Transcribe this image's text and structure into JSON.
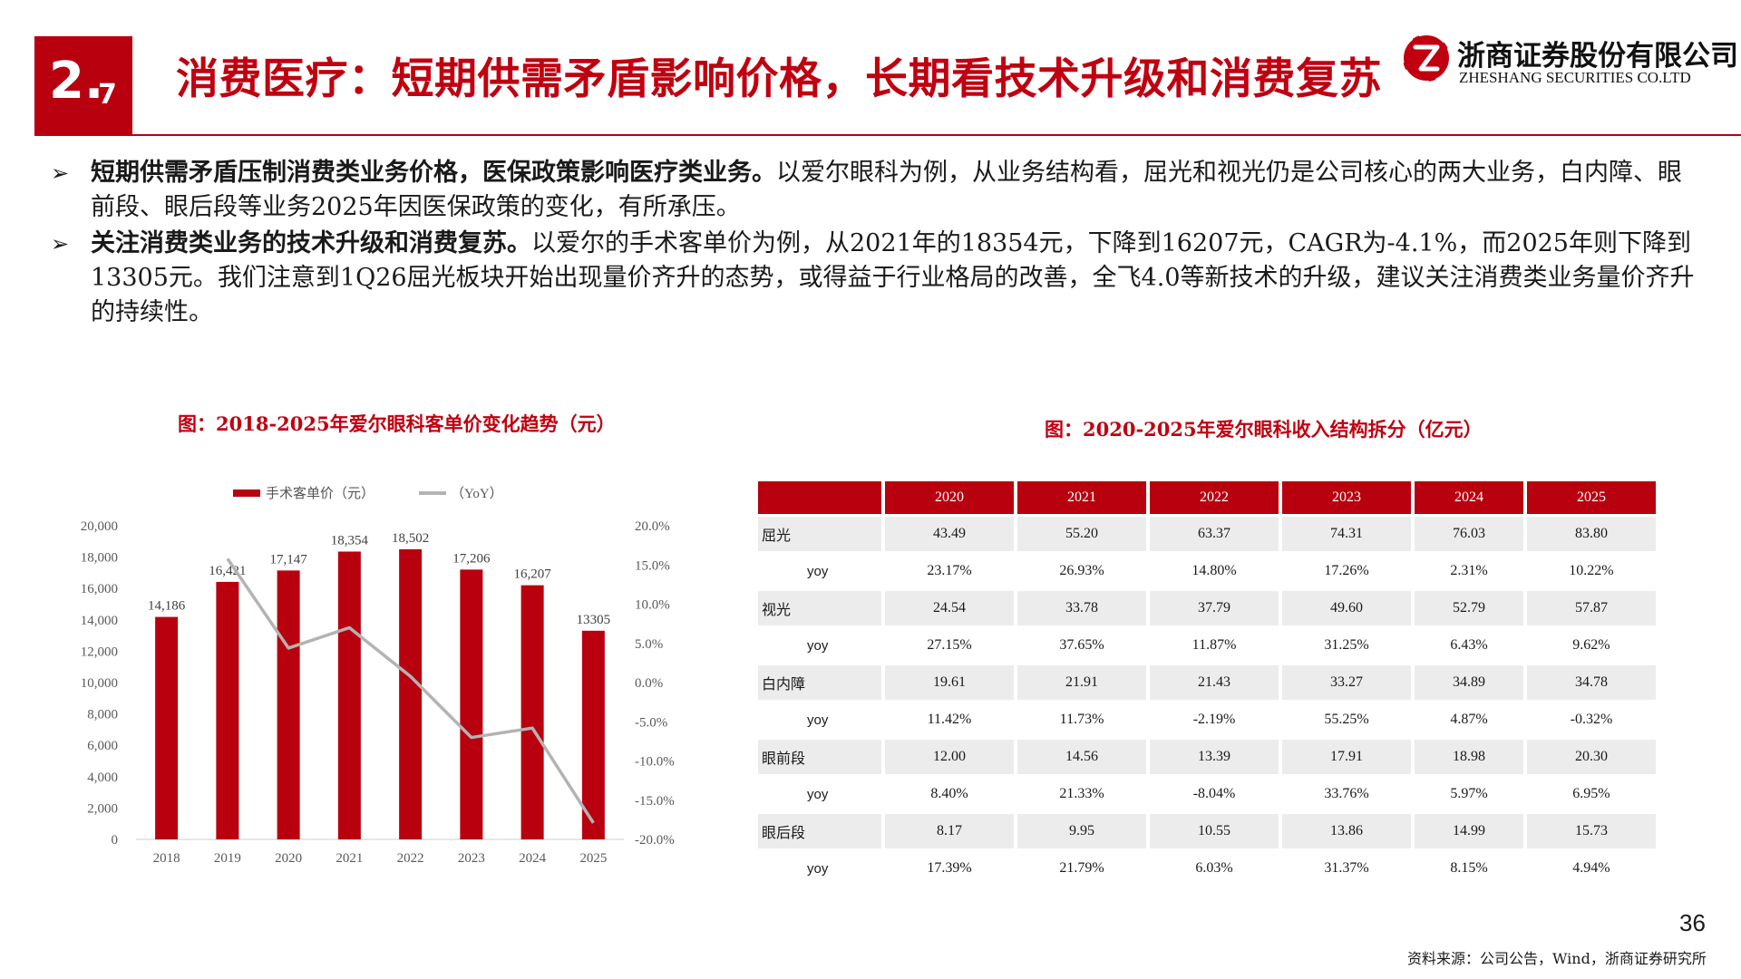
{
  "section": {
    "major": "2.",
    "minor": "7"
  },
  "title": "消费医疗：短期供需矛盾影响价格，长期看技术升级和消费复苏",
  "logo": {
    "cn": "浙商证券股份有限公司",
    "en": "ZHESHANG SECURITIES CO.LTD"
  },
  "bullets": [
    {
      "bold": "短期供需矛盾压制消费类业务价格，医保政策影响医疗类业务。",
      "text": "以爱尔眼科为例，从业务结构看，屈光和视光仍是公司核心的两大业务，白内障、眼前段、眼后段等业务2025年因医保政策的变化，有所承压。"
    },
    {
      "bold": "关注消费类业务的技术升级和消费复苏。",
      "text": "以爱尔的手术客单价为例，从2021年的18354元，下降到16207元，CAGR为-4.1%，而2025年则下降到13305元。我们注意到1Q26屈光板块开始出现量价齐升的态势，或得益于行业格局的改善，全飞4.0等新技术的升级，建议关注消费类业务量价齐升的持续性。"
    }
  ],
  "chart1_title": "图：2018-2025年爱尔眼科客单价变化趋势（元）",
  "table_title": "图：2020-2025年爱尔眼科收入结构拆分（亿元）",
  "chart_data": [
    {
      "type": "bar",
      "categories": [
        "2018",
        "2019",
        "2020",
        "2021",
        "2022",
        "2023",
        "2024",
        "2025"
      ],
      "series": [
        {
          "name": "手术客单价（元）",
          "type": "bar",
          "axis": "left",
          "color": "#b8000f",
          "values": [
            14186,
            16421,
            17147,
            18354,
            18502,
            17206,
            16207,
            13305
          ],
          "labels": [
            "14,186",
            "16,421",
            "17,147",
            "18,354",
            "18,502",
            "17,206",
            "16,207",
            "13305"
          ]
        },
        {
          "name": "（YoY）",
          "type": "line",
          "axis": "right",
          "color": "#b3b3b3",
          "values": [
            null,
            15.8,
            4.4,
            7.0,
            0.8,
            -7.0,
            -5.8,
            -17.9
          ]
        }
      ],
      "ylim_left": [
        0,
        20000
      ],
      "yticks_left": [
        "0",
        "2,000",
        "4,000",
        "6,000",
        "8,000",
        "10,000",
        "12,000",
        "14,000",
        "16,000",
        "18,000",
        "20,000"
      ],
      "ylim_right": [
        -20,
        20
      ],
      "yticks_right": [
        "-20.0%",
        "-15.0%",
        "-10.0%",
        "-5.0%",
        "0.0%",
        "5.0%",
        "10.0%",
        "15.0%",
        "20.0%"
      ],
      "legend": "top"
    },
    {
      "type": "table",
      "columns": [
        "",
        "2020",
        "2021",
        "2022",
        "2023",
        "2024",
        "2025"
      ],
      "rows": [
        {
          "label": "屈光",
          "kind": "main",
          "values": [
            "43.49",
            "55.20",
            "63.37",
            "74.31",
            "76.03",
            "83.80"
          ]
        },
        {
          "label": "yoy",
          "kind": "sub",
          "values": [
            "23.17%",
            "26.93%",
            "14.80%",
            "17.26%",
            "2.31%",
            "10.22%"
          ]
        },
        {
          "label": "视光",
          "kind": "main",
          "values": [
            "24.54",
            "33.78",
            "37.79",
            "49.60",
            "52.79",
            "57.87"
          ]
        },
        {
          "label": "yoy",
          "kind": "sub",
          "values": [
            "27.15%",
            "37.65%",
            "11.87%",
            "31.25%",
            "6.43%",
            "9.62%"
          ]
        },
        {
          "label": "白内障",
          "kind": "main",
          "values": [
            "19.61",
            "21.91",
            "21.43",
            "33.27",
            "34.89",
            "34.78"
          ]
        },
        {
          "label": "yoy",
          "kind": "sub",
          "values": [
            "11.42%",
            "11.73%",
            "-2.19%",
            "55.25%",
            "4.87%",
            "-0.32%"
          ]
        },
        {
          "label": "眼前段",
          "kind": "main",
          "values": [
            "12.00",
            "14.56",
            "13.39",
            "17.91",
            "18.98",
            "20.30"
          ]
        },
        {
          "label": "yoy",
          "kind": "sub",
          "values": [
            "8.40%",
            "21.33%",
            "-8.04%",
            "33.76%",
            "5.97%",
            "6.95%"
          ]
        },
        {
          "label": "眼后段",
          "kind": "main",
          "values": [
            "8.17",
            "9.95",
            "10.55",
            "13.86",
            "14.99",
            "15.73"
          ]
        },
        {
          "label": "yoy",
          "kind": "sub",
          "values": [
            "17.39%",
            "21.79%",
            "6.03%",
            "31.37%",
            "8.15%",
            "4.94%"
          ]
        }
      ]
    }
  ],
  "page_number": "36",
  "source": "资料来源：公司公告，Wind，浙商证券研究所",
  "colors": {
    "brand_red": "#b8000f",
    "title_red": "#c00010",
    "line_gray": "#b3b3b3",
    "row_shade": "#ececec"
  }
}
